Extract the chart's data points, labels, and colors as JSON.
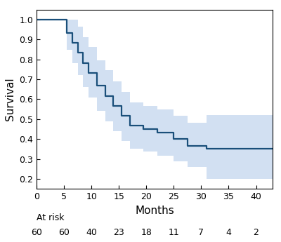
{
  "title": "",
  "xlabel": "Months",
  "ylabel": "Survival",
  "xlim": [
    0,
    43
  ],
  "ylim": [
    0.15,
    1.05
  ],
  "xticks": [
    0,
    5,
    10,
    15,
    20,
    25,
    30,
    35,
    40
  ],
  "yticks": [
    0.2,
    0.3,
    0.4,
    0.5,
    0.6,
    0.7,
    0.8,
    0.9,
    1.0
  ],
  "line_color": "#1a4f7a",
  "ci_color": "#aec8e8",
  "ci_alpha": 0.55,
  "at_risk_times": [
    0,
    5,
    10,
    15,
    20,
    25,
    30,
    35,
    40
  ],
  "at_risk_counts": [
    60,
    60,
    40,
    23,
    18,
    11,
    7,
    4,
    2
  ],
  "km_t": [
    0,
    4.5,
    5.5,
    6.5,
    7.5,
    8.5,
    9.5,
    11.0,
    12.5,
    14.0,
    15.5,
    17.0,
    19.5,
    22.0,
    25.0,
    27.5,
    31.0,
    43.0
  ],
  "km_s": [
    1.0,
    1.0,
    0.933,
    0.883,
    0.833,
    0.783,
    0.733,
    0.667,
    0.617,
    0.567,
    0.517,
    0.467,
    0.45,
    0.433,
    0.4,
    0.367,
    0.35,
    0.35
  ],
  "km_upper": [
    1.0,
    1.0,
    1.0,
    1.0,
    0.963,
    0.913,
    0.863,
    0.797,
    0.747,
    0.69,
    0.637,
    0.583,
    0.567,
    0.55,
    0.517,
    0.48,
    0.52,
    0.52
  ],
  "km_lower": [
    1.0,
    1.0,
    0.847,
    0.78,
    0.72,
    0.66,
    0.607,
    0.54,
    0.49,
    0.44,
    0.39,
    0.35,
    0.337,
    0.317,
    0.287,
    0.26,
    0.2,
    0.2
  ],
  "background_color": "#ffffff",
  "tick_fontsize": 9,
  "label_fontsize": 11,
  "atrisk_fontsize": 9,
  "line_width": 1.6
}
